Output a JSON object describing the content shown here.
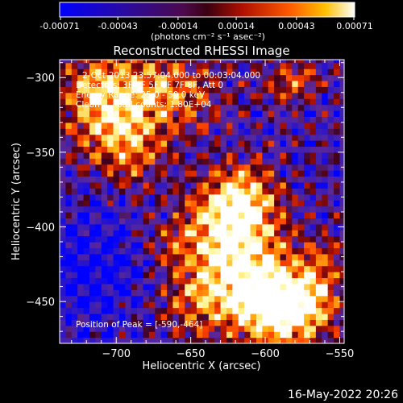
{
  "colorbar": {
    "ticks": [
      "-0.00071",
      "-0.00043",
      "-0.00014",
      "0.00014",
      "0.00043",
      "0.00071"
    ],
    "units": "(photons cm⁻² s⁻¹ asec⁻²)",
    "range": [
      -0.00071,
      0.00071
    ]
  },
  "chart_data": {
    "type": "heatmap",
    "title": "Reconstructed RHESSI Image",
    "xlabel": "Heliocentric X (arcsec)",
    "ylabel": "Heliocentric Y (arcsec)",
    "xlim": [
      -738,
      -547
    ],
    "ylim": [
      -478,
      -288
    ],
    "xticks": [
      -700,
      -650,
      -600,
      -550
    ],
    "yticks": [
      -300,
      -350,
      -400,
      -450
    ],
    "xtick_labels": [
      "−700",
      "−650",
      "−600",
      "−550"
    ],
    "ytick_labels": [
      "−300",
      "−350",
      "−400",
      "−450"
    ],
    "annotations": {
      "time_range": "2-Oct-2013 23:57:04.000 to 00:03:04.000",
      "detectors": "Detectors: 3F 4F 5F 6F 7F 8F, Att 0",
      "energy": "Energy Range: 25.0 - 50.0 keV",
      "method": "Clean     Total counts: 1.80E+04",
      "peak": "Position of Peak = [-590,-464]"
    },
    "peak_position": [
      -590,
      -464
    ],
    "colormap": "blue-purple-red-yellow-white"
  },
  "footer": "16-May-2022 20:26"
}
